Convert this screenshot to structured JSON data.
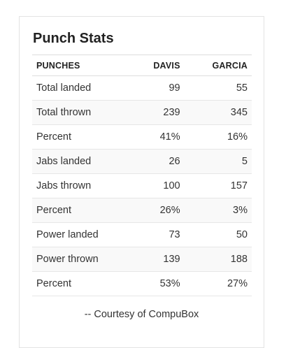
{
  "title": "Punch Stats",
  "table": {
    "headers": [
      "PUNCHES",
      "DAVIS",
      "GARCIA"
    ],
    "rows": [
      {
        "label": "Total landed",
        "davis": "99",
        "garcia": "55"
      },
      {
        "label": "Total thrown",
        "davis": "239",
        "garcia": "345"
      },
      {
        "label": "Percent",
        "davis": "41%",
        "garcia": "16%"
      },
      {
        "label": "Jabs landed",
        "davis": "26",
        "garcia": "5"
      },
      {
        "label": "Jabs thrown",
        "davis": "100",
        "garcia": "157"
      },
      {
        "label": "Percent",
        "davis": "26%",
        "garcia": "3%"
      },
      {
        "label": "Power landed",
        "davis": "73",
        "garcia": "50"
      },
      {
        "label": "Power thrown",
        "davis": "139",
        "garcia": "188"
      },
      {
        "label": "Percent",
        "davis": "53%",
        "garcia": "27%"
      }
    ]
  },
  "credit": "-- Courtesy of CompuBox",
  "colors": {
    "border": "#dddddd",
    "stripe": "#f9f9f9",
    "text": "#333333"
  }
}
